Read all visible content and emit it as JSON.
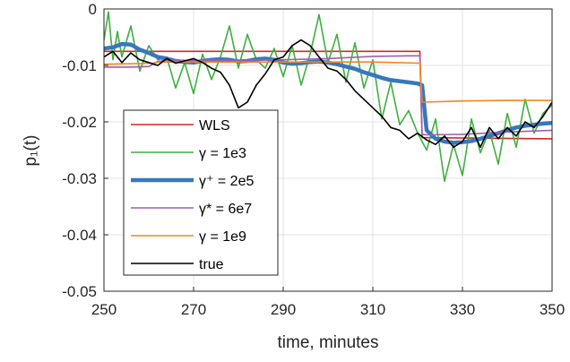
{
  "chart_data": {
    "type": "line",
    "xlabel": "time, minutes",
    "ylabel": "p₁(t)",
    "xlim": [
      250,
      350
    ],
    "ylim": [
      -0.05,
      0
    ],
    "xticks": [
      250,
      270,
      290,
      310,
      330,
      350
    ],
    "xtick_labels": [
      "250",
      "270",
      "290",
      "310",
      "330",
      "350"
    ],
    "yticks": [
      0,
      -0.01,
      -0.02,
      -0.03,
      -0.04,
      -0.05
    ],
    "ytick_labels": [
      "0",
      "-0.01",
      "-0.02",
      "-0.03",
      "-0.04",
      "-0.05"
    ],
    "grid": true,
    "legend_position": "lower-left",
    "series": [
      {
        "name": "WLS",
        "color": "#D62728",
        "line_width": "normal",
        "x": [
          250,
          320.5,
          321,
          350
        ],
        "y": [
          -0.0075,
          -0.0075,
          -0.0228,
          -0.023
        ]
      },
      {
        "name": "γ = 1e3",
        "color": "#3FAF3F",
        "line_width": "normal",
        "x": [
          250,
          251,
          252,
          253,
          254,
          256,
          258,
          260,
          262,
          264,
          266,
          268,
          270,
          272,
          274,
          276,
          278,
          280,
          282,
          284,
          286,
          288,
          290,
          292,
          294,
          296,
          298,
          300,
          302,
          304,
          306,
          308,
          310,
          312,
          314,
          316,
          318,
          320,
          322,
          324,
          326,
          328,
          330,
          332,
          334,
          336,
          338,
          340,
          342,
          344,
          346,
          348,
          350
        ],
        "y": [
          -0.0055,
          -0.0005,
          -0.009,
          -0.004,
          -0.0085,
          -0.003,
          -0.011,
          -0.0065,
          -0.009,
          -0.0085,
          -0.014,
          -0.0095,
          -0.015,
          -0.008,
          -0.0125,
          -0.0085,
          -0.003,
          -0.0105,
          -0.0045,
          -0.009,
          -0.0105,
          -0.007,
          -0.012,
          -0.0065,
          -0.0135,
          -0.008,
          -0.001,
          -0.0095,
          -0.0045,
          -0.013,
          -0.006,
          -0.014,
          -0.009,
          -0.0195,
          -0.013,
          -0.0205,
          -0.018,
          -0.022,
          -0.025,
          -0.0195,
          -0.0305,
          -0.024,
          -0.0295,
          -0.0195,
          -0.0255,
          -0.0215,
          -0.0275,
          -0.0185,
          -0.0245,
          -0.016,
          -0.022,
          -0.0185,
          -0.017
        ]
      },
      {
        "name": "γ⁺ = 2e5",
        "color": "#3778BB",
        "line_width": "bold",
        "x": [
          250,
          252,
          254,
          256,
          258,
          260,
          262,
          264,
          266,
          268,
          270,
          272,
          274,
          276,
          278,
          280,
          282,
          284,
          286,
          288,
          290,
          292,
          294,
          296,
          298,
          300,
          302,
          304,
          306,
          308,
          310,
          312,
          314,
          316,
          318,
          320,
          321,
          322,
          324,
          326,
          328,
          330,
          332,
          334,
          336,
          338,
          340,
          342,
          344,
          346,
          348,
          350
        ],
        "y": [
          -0.007,
          -0.0068,
          -0.0062,
          -0.0063,
          -0.0072,
          -0.0078,
          -0.0085,
          -0.0088,
          -0.0092,
          -0.0094,
          -0.0095,
          -0.0092,
          -0.009,
          -0.0089,
          -0.009,
          -0.0093,
          -0.0092,
          -0.0089,
          -0.0088,
          -0.009,
          -0.0095,
          -0.0097,
          -0.0096,
          -0.0094,
          -0.0093,
          -0.0095,
          -0.0098,
          -0.0102,
          -0.0106,
          -0.0112,
          -0.0117,
          -0.0122,
          -0.0126,
          -0.0128,
          -0.013,
          -0.0132,
          -0.0135,
          -0.0215,
          -0.023,
          -0.0235,
          -0.0237,
          -0.0236,
          -0.0234,
          -0.023,
          -0.0225,
          -0.022,
          -0.0215,
          -0.021,
          -0.0207,
          -0.0205,
          -0.0203,
          -0.0202
        ]
      },
      {
        "name": "γ* = 6e7",
        "color": "#9D5FB5",
        "line_width": "normal",
        "x": [
          250,
          256,
          260,
          262,
          264,
          270,
          280,
          290,
          300,
          310,
          318,
          320.5,
          321,
          322,
          330,
          340,
          350
        ],
        "y": [
          -0.0103,
          -0.0103,
          -0.0102,
          -0.0093,
          -0.0091,
          -0.0091,
          -0.0091,
          -0.009,
          -0.0088,
          -0.0084,
          -0.0083,
          -0.0083,
          -0.0222,
          -0.0223,
          -0.0222,
          -0.0218,
          -0.0215
        ]
      },
      {
        "name": "γ = 1e9",
        "color": "#F2861C",
        "line_width": "normal",
        "x": [
          250,
          261,
          262,
          290,
          300,
          310,
          320.5,
          321,
          330,
          340,
          350
        ],
        "y": [
          -0.0098,
          -0.0096,
          -0.0094,
          -0.0094,
          -0.0094,
          -0.0094,
          -0.0096,
          -0.0165,
          -0.0163,
          -0.0162,
          -0.0162
        ]
      },
      {
        "name": "true",
        "color": "#000000",
        "line_width": "normal",
        "x": [
          250,
          252,
          254,
          256,
          258,
          260,
          262,
          264,
          266,
          268,
          270,
          272,
          274,
          276,
          278,
          280,
          282,
          284,
          286,
          288,
          290,
          292,
          294,
          296,
          298,
          300,
          302,
          304,
          306,
          308,
          310,
          312,
          314,
          316,
          318,
          320,
          322,
          324,
          326,
          328,
          330,
          332,
          334,
          336,
          338,
          340,
          342,
          344,
          346,
          348,
          350
        ],
        "y": [
          -0.0085,
          -0.0075,
          -0.0095,
          -0.0078,
          -0.009,
          -0.0095,
          -0.01,
          -0.0088,
          -0.0096,
          -0.0092,
          -0.0088,
          -0.0095,
          -0.0105,
          -0.0112,
          -0.0135,
          -0.0175,
          -0.0165,
          -0.0135,
          -0.0115,
          -0.009,
          -0.0085,
          -0.0065,
          -0.0055,
          -0.0065,
          -0.0085,
          -0.0105,
          -0.011,
          -0.0125,
          -0.0145,
          -0.016,
          -0.0175,
          -0.019,
          -0.021,
          -0.0215,
          -0.023,
          -0.022,
          -0.0232,
          -0.024,
          -0.0225,
          -0.0245,
          -0.0235,
          -0.021,
          -0.0245,
          -0.021,
          -0.023,
          -0.021,
          -0.0225,
          -0.02,
          -0.021,
          -0.019,
          -0.0165
        ]
      }
    ]
  }
}
